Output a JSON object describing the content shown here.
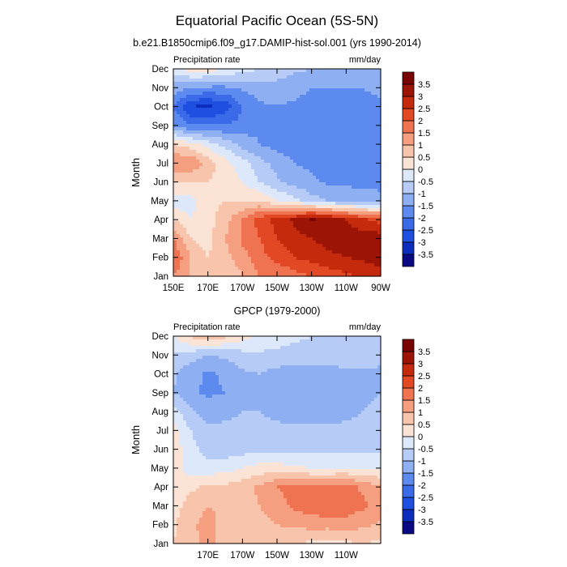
{
  "title": "Equatorial Pacific Ocean (5S-5N)",
  "colorbar": {
    "levels": [
      -3.5,
      -3,
      -2.5,
      -2,
      -1.5,
      -1,
      -0.5,
      0,
      0.5,
      1,
      1.5,
      2,
      2.5,
      3,
      3.5
    ],
    "labels": [
      "-3.5",
      "-3",
      "-2.5",
      "-2",
      "-1.5",
      "-1",
      "-0.5",
      "0",
      "0.5",
      "1",
      "1.5",
      "2",
      "2.5",
      "3",
      "3.5"
    ],
    "colors": [
      "#0a0a84",
      "#0c2dbd",
      "#1e4fe0",
      "#3a6ae8",
      "#5d8aee",
      "#8eaff2",
      "#b6ccf6",
      "#dde8fb",
      "#fbe3d6",
      "#f8c4ac",
      "#f59e80",
      "#ef7350",
      "#e34824",
      "#c62a0c",
      "#9c1406",
      "#780404"
    ]
  },
  "chart_data": [
    {
      "type": "heatmap",
      "title": "b.e21.B1850cmip6.f09_g17.DAMIP-hist-sol.001 (yrs 1990-2014)",
      "left_label": "Precipitation rate",
      "right_label": "mm/day",
      "ylabel": "Month",
      "xlabel": "",
      "x_ticks": [
        150,
        170,
        190,
        210,
        230,
        250,
        270
      ],
      "x_tick_labels": [
        "150E",
        "170E",
        "170W",
        "150W",
        "130W",
        "110W",
        "90W"
      ],
      "xlim": [
        150,
        270
      ],
      "y_categories": [
        "Jan",
        "Feb",
        "Mar",
        "Apr",
        "May",
        "Jun",
        "Jul",
        "Aug",
        "Sep",
        "Oct",
        "Nov",
        "Dec"
      ],
      "x": [
        150,
        160,
        170,
        180,
        190,
        200,
        210,
        220,
        230,
        240,
        250,
        260,
        270
      ],
      "z": [
        [
          1.5,
          1.0,
          0.5,
          0.5,
          1.0,
          1.5,
          1.5,
          1.8,
          2.0,
          2.2,
          2.4,
          2.6,
          2.8
        ],
        [
          2.0,
          1.0,
          0.5,
          0.8,
          1.3,
          1.8,
          2.2,
          2.5,
          2.7,
          2.9,
          3.0,
          3.1,
          3.2
        ],
        [
          1.5,
          0.5,
          0.3,
          1.0,
          1.6,
          2.0,
          2.5,
          2.8,
          3.0,
          3.2,
          3.2,
          3.3,
          3.3
        ],
        [
          0.5,
          0.0,
          0.3,
          0.8,
          1.5,
          2.2,
          2.7,
          3.1,
          3.6,
          3.3,
          3.0,
          2.6,
          2.3
        ],
        [
          -0.3,
          -0.2,
          0.3,
          0.5,
          0.5,
          0.5,
          0.0,
          -0.3,
          -0.8,
          -1.0,
          -1.2,
          -1.3,
          -1.4
        ],
        [
          0.5,
          0.5,
          0.5,
          0.3,
          0.0,
          -0.5,
          -0.9,
          -1.2,
          -1.4,
          -1.6,
          -1.6,
          -1.6,
          -1.6
        ],
        [
          1.5,
          1.5,
          0.8,
          0.2,
          -0.3,
          -0.8,
          -1.2,
          -1.5,
          -1.6,
          -1.7,
          -1.7,
          -1.6,
          -1.6
        ],
        [
          0.5,
          0.2,
          -0.2,
          -0.7,
          -1.2,
          -1.5,
          -1.7,
          -1.8,
          -1.9,
          -1.9,
          -1.8,
          -1.7,
          -1.6
        ],
        [
          -1.5,
          -2.0,
          -2.0,
          -2.0,
          -1.8,
          -1.6,
          -1.7,
          -1.8,
          -1.9,
          -1.9,
          -1.8,
          -1.7,
          -1.6
        ],
        [
          -2.0,
          -3.0,
          -3.1,
          -2.8,
          -2.0,
          -1.6,
          -1.5,
          -1.6,
          -1.7,
          -1.7,
          -1.7,
          -1.6,
          -1.6
        ],
        [
          -1.2,
          -1.5,
          -1.6,
          -1.6,
          -1.4,
          -1.2,
          -1.2,
          -1.3,
          -1.5,
          -1.5,
          -1.5,
          -1.5,
          -1.4
        ],
        [
          -0.3,
          0.3,
          0.3,
          0.0,
          -0.3,
          -0.5,
          -0.7,
          -0.9,
          -1.0,
          -1.0,
          -1.1,
          -1.2,
          -1.2
        ]
      ]
    },
    {
      "type": "heatmap",
      "title": "GPCP (1979-2000)",
      "left_label": "Precipitation rate",
      "right_label": "mm/day",
      "ylabel": "Month",
      "xlabel": "",
      "x_ticks": [
        170,
        190,
        210,
        230,
        250
      ],
      "x_tick_labels": [
        "170E",
        "170W",
        "150W",
        "130W",
        "110W"
      ],
      "xlim": [
        150,
        270
      ],
      "y_categories": [
        "Jan",
        "Feb",
        "Mar",
        "Apr",
        "May",
        "Jun",
        "Jul",
        "Aug",
        "Sep",
        "Oct",
        "Nov",
        "Dec"
      ],
      "x": [
        150,
        160,
        170,
        180,
        190,
        200,
        210,
        220,
        230,
        240,
        250,
        260,
        270
      ],
      "z": [
        [
          0.5,
          0.8,
          1.2,
          0.8,
          0.5,
          0.6,
          0.8,
          0.5,
          0.4,
          0.3,
          0.4,
          0.5,
          0.4
        ],
        [
          0.4,
          0.9,
          1.2,
          0.8,
          0.6,
          0.8,
          1.0,
          1.1,
          1.2,
          1.2,
          1.3,
          1.1,
          0.9
        ],
        [
          0.3,
          0.7,
          1.0,
          0.9,
          0.8,
          1.0,
          1.3,
          1.6,
          1.8,
          1.9,
          1.8,
          1.6,
          1.3
        ],
        [
          0.2,
          0.4,
          0.6,
          0.6,
          0.8,
          1.1,
          1.5,
          1.7,
          1.6,
          1.6,
          1.7,
          1.4,
          1.0
        ],
        [
          0.3,
          -0.3,
          -0.3,
          -0.2,
          0.0,
          0.2,
          0.2,
          0.1,
          0.0,
          0.0,
          0.0,
          0.0,
          0.0
        ],
        [
          0.3,
          -0.3,
          -0.7,
          -0.8,
          -0.7,
          -0.6,
          -0.6,
          -0.6,
          -0.6,
          -0.6,
          -0.6,
          -0.6,
          -0.6
        ],
        [
          0.2,
          -0.5,
          -0.9,
          -0.9,
          -0.9,
          -0.9,
          -0.9,
          -0.9,
          -0.9,
          -0.9,
          -0.9,
          -0.9,
          -0.9
        ],
        [
          -0.3,
          -0.9,
          -1.2,
          -1.1,
          -1.0,
          -1.0,
          -1.1,
          -1.2,
          -1.2,
          -1.2,
          -1.1,
          -1.0,
          -0.9
        ],
        [
          -1.0,
          -1.4,
          -1.6,
          -1.5,
          -1.2,
          -1.1,
          -1.2,
          -1.3,
          -1.3,
          -1.3,
          -1.2,
          -1.1,
          -1.0
        ],
        [
          -0.9,
          -1.3,
          -1.6,
          -1.4,
          -1.1,
          -1.0,
          -1.2,
          -1.3,
          -1.3,
          -1.3,
          -1.1,
          -1.1,
          -1.2
        ],
        [
          -0.6,
          -0.8,
          -1.0,
          -0.9,
          -0.7,
          -0.6,
          -0.6,
          -0.7,
          -0.7,
          -0.7,
          -0.6,
          -0.6,
          -0.7
        ],
        [
          0.0,
          0.6,
          1.0,
          0.6,
          0.2,
          -0.1,
          -0.3,
          -0.4,
          -0.5,
          -0.5,
          -0.5,
          -0.6,
          -0.6
        ]
      ]
    }
  ]
}
